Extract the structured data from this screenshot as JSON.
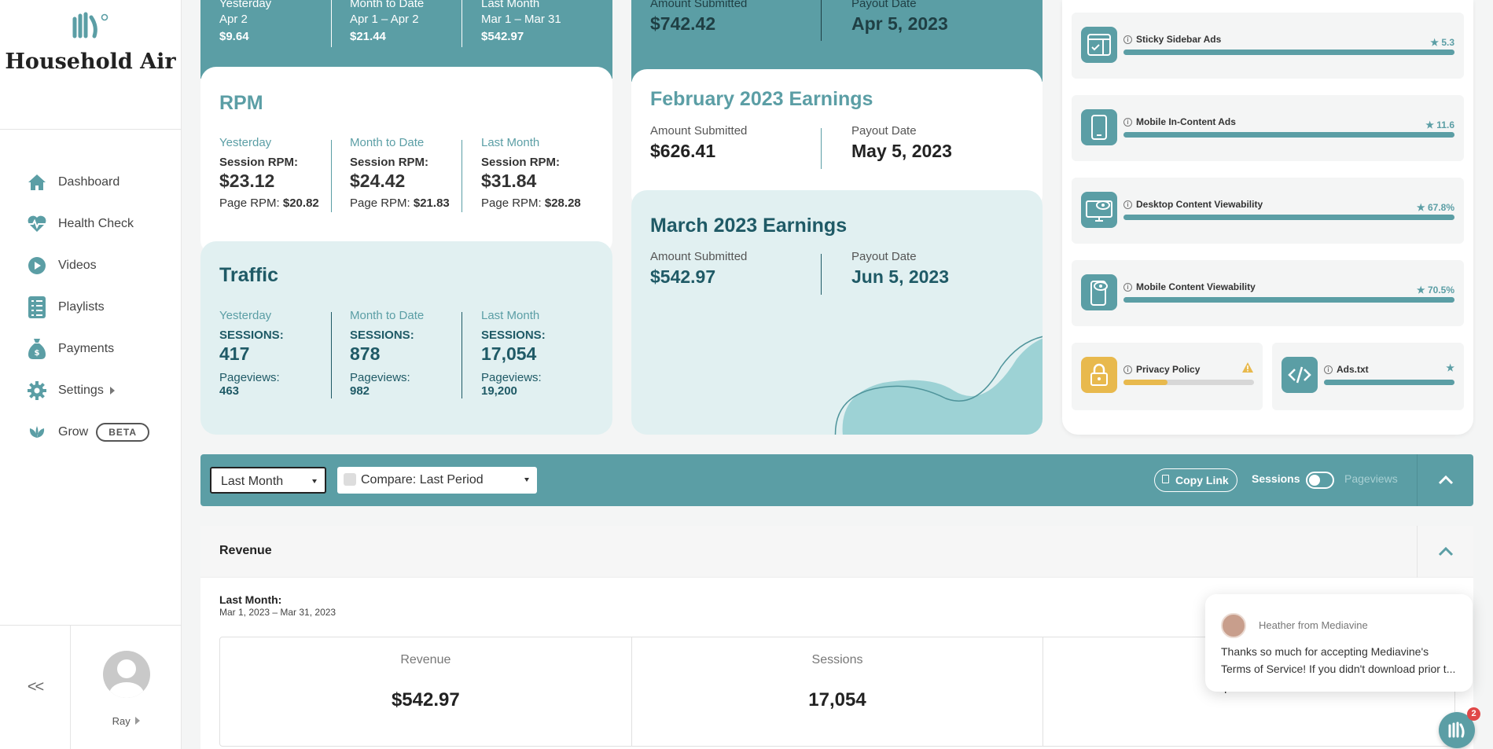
{
  "brand": {
    "name": "Household Air",
    "accent": "#5b9ea5",
    "mint": "#e1f0f1",
    "warning": "#e8b94d"
  },
  "sidebar": {
    "items": [
      {
        "label": "Dashboard",
        "icon": "home-icon"
      },
      {
        "label": "Health Check",
        "icon": "heartbeat-icon"
      },
      {
        "label": "Videos",
        "icon": "play-icon"
      },
      {
        "label": "Playlists",
        "icon": "checklist-icon"
      },
      {
        "label": "Payments",
        "icon": "money-bag-icon"
      },
      {
        "label": "Settings",
        "icon": "gear-icon"
      },
      {
        "label": "Grow",
        "icon": "leaf-icon",
        "badge": "BETA"
      }
    ],
    "collapse_label": "<<",
    "user_name": "Ray"
  },
  "earnings_top": {
    "cols": [
      {
        "label": "Yesterday",
        "sub": "Apr 2",
        "value": "$9.64"
      },
      {
        "label": "Month to Date",
        "sub": "Apr 1 – Apr 2",
        "value": "$21.44"
      },
      {
        "label": "Last Month",
        "sub": "Mar 1 – Mar 31",
        "value": "$542.97"
      }
    ]
  },
  "rpm": {
    "title": "RPM",
    "session_label": "Session RPM:",
    "page_label": "Page RPM:",
    "cols": [
      {
        "label": "Yesterday",
        "session": "$23.12",
        "page": "$20.82"
      },
      {
        "label": "Month to Date",
        "session": "$24.42",
        "page": "$21.83"
      },
      {
        "label": "Last Month",
        "session": "$31.84",
        "page": "$28.28"
      }
    ]
  },
  "traffic": {
    "title": "Traffic",
    "sessions_label": "SESSIONS:",
    "pageviews_label": "Pageviews:",
    "cols": [
      {
        "label": "Yesterday",
        "sessions": "417",
        "pageviews": "463"
      },
      {
        "label": "Month to Date",
        "sessions": "878",
        "pageviews": "982"
      },
      {
        "label": "Last Month",
        "sessions": "17,054",
        "pageviews": "19,200"
      }
    ]
  },
  "payouts": {
    "amount_label": "Amount Submitted",
    "date_label": "Payout Date",
    "top": {
      "amount": "$742.42",
      "date": "Apr 5, 2023"
    },
    "february": {
      "title": "February 2023 Earnings",
      "amount": "$626.41",
      "date": "May 5, 2023"
    },
    "march": {
      "title": "March 2023 Earnings",
      "amount": "$542.97",
      "date": "Jun 5, 2023"
    }
  },
  "health_check": {
    "items": [
      {
        "label": "Sticky Sidebar Ads",
        "score": "5.3",
        "fill": 1.0
      },
      {
        "label": "Mobile In-Content Ads",
        "score": "11.6",
        "fill": 1.0
      },
      {
        "label": "Desktop Content Viewability",
        "score": "67.8%",
        "fill": 1.0
      },
      {
        "label": "Mobile Content Viewability",
        "score": "70.5%",
        "fill": 1.0
      }
    ],
    "privacy": {
      "label": "Privacy Policy",
      "fill": 0.34
    },
    "ads_txt": {
      "label": "Ads.txt",
      "fill": 1.0
    }
  },
  "filter_bar": {
    "period": "Last Month",
    "compare": "Compare: Last Period",
    "copy_link": "Copy Link",
    "toggle_left": "Sessions",
    "toggle_right": "Pageviews"
  },
  "revenue": {
    "title": "Revenue",
    "range_label": "Last Month:",
    "range": "Mar 1, 2023 – Mar 31, 2023",
    "metrics": [
      {
        "label": "Revenue",
        "value": "$542.97"
      },
      {
        "label": "Sessions",
        "value": "17,054"
      },
      {
        "label": "",
        "value": "$31.84"
      }
    ]
  },
  "chat": {
    "from": "Heather from Mediavine",
    "message": "Thanks so much for accepting Mediavine's Terms of Service! If you didn't download prior t...",
    "badge": "2"
  }
}
